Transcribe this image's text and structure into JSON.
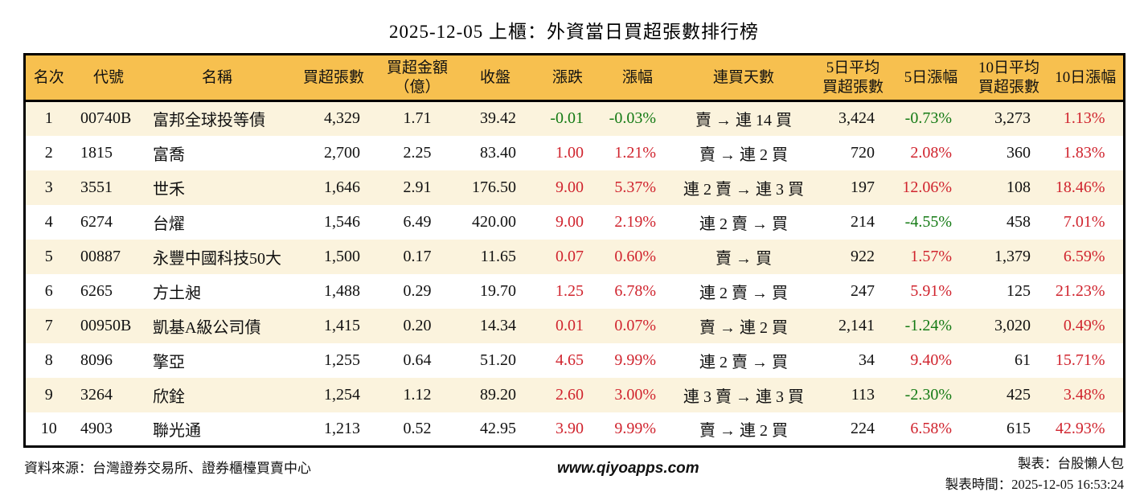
{
  "title": "2025-12-05 上櫃：外資當日買超張數排行榜",
  "table": {
    "headers": [
      "名次",
      "代號",
      "名稱",
      "買超張數",
      "買超金額\n（億）",
      "收盤",
      "漲跌",
      "漲幅",
      "連買天數",
      "5日平均\n買超張數",
      "5日漲幅",
      "10日平均\n買超張數",
      "10日漲幅"
    ],
    "rows": [
      {
        "rank": "1",
        "code": "00740B",
        "name": "富邦全球投等債",
        "lots": "4,329",
        "amount": "1.71",
        "close": "39.42",
        "change": "-0.01",
        "change_dir": "down",
        "pct": "-0.03%",
        "pct_dir": "down",
        "streak": "賣 → 連 14 買",
        "avg5": "3,424",
        "pct5": "-0.73%",
        "pct5_dir": "down",
        "avg10": "3,273",
        "pct10": "1.13%",
        "pct10_dir": "up"
      },
      {
        "rank": "2",
        "code": "1815",
        "name": "富喬",
        "lots": "2,700",
        "amount": "2.25",
        "close": "83.40",
        "change": "1.00",
        "change_dir": "up",
        "pct": "1.21%",
        "pct_dir": "up",
        "streak": "賣 → 連 2 買",
        "avg5": "720",
        "pct5": "2.08%",
        "pct5_dir": "up",
        "avg10": "360",
        "pct10": "1.83%",
        "pct10_dir": "up"
      },
      {
        "rank": "3",
        "code": "3551",
        "name": "世禾",
        "lots": "1,646",
        "amount": "2.91",
        "close": "176.50",
        "change": "9.00",
        "change_dir": "up",
        "pct": "5.37%",
        "pct_dir": "up",
        "streak": "連 2 賣 → 連 3 買",
        "avg5": "197",
        "pct5": "12.06%",
        "pct5_dir": "up",
        "avg10": "108",
        "pct10": "18.46%",
        "pct10_dir": "up"
      },
      {
        "rank": "4",
        "code": "6274",
        "name": "台燿",
        "lots": "1,546",
        "amount": "6.49",
        "close": "420.00",
        "change": "9.00",
        "change_dir": "up",
        "pct": "2.19%",
        "pct_dir": "up",
        "streak": "連 2 賣 → 買",
        "avg5": "214",
        "pct5": "-4.55%",
        "pct5_dir": "down",
        "avg10": "458",
        "pct10": "7.01%",
        "pct10_dir": "up"
      },
      {
        "rank": "5",
        "code": "00887",
        "name": "永豐中國科技50大",
        "lots": "1,500",
        "amount": "0.17",
        "close": "11.65",
        "change": "0.07",
        "change_dir": "up",
        "pct": "0.60%",
        "pct_dir": "up",
        "streak": "賣 → 買",
        "avg5": "922",
        "pct5": "1.57%",
        "pct5_dir": "up",
        "avg10": "1,379",
        "pct10": "6.59%",
        "pct10_dir": "up"
      },
      {
        "rank": "6",
        "code": "6265",
        "name": "方土昶",
        "lots": "1,488",
        "amount": "0.29",
        "close": "19.70",
        "change": "1.25",
        "change_dir": "up",
        "pct": "6.78%",
        "pct_dir": "up",
        "streak": "連 2 賣 → 買",
        "avg5": "247",
        "pct5": "5.91%",
        "pct5_dir": "up",
        "avg10": "125",
        "pct10": "21.23%",
        "pct10_dir": "up"
      },
      {
        "rank": "7",
        "code": "00950B",
        "name": "凱基A級公司債",
        "lots": "1,415",
        "amount": "0.20",
        "close": "14.34",
        "change": "0.01",
        "change_dir": "up",
        "pct": "0.07%",
        "pct_dir": "up",
        "streak": "賣 → 連 2 買",
        "avg5": "2,141",
        "pct5": "-1.24%",
        "pct5_dir": "down",
        "avg10": "3,020",
        "pct10": "0.49%",
        "pct10_dir": "up"
      },
      {
        "rank": "8",
        "code": "8096",
        "name": "擎亞",
        "lots": "1,255",
        "amount": "0.64",
        "close": "51.20",
        "change": "4.65",
        "change_dir": "up",
        "pct": "9.99%",
        "pct_dir": "up",
        "streak": "連 2 賣 → 買",
        "avg5": "34",
        "pct5": "9.40%",
        "pct5_dir": "up",
        "avg10": "61",
        "pct10": "15.71%",
        "pct10_dir": "up"
      },
      {
        "rank": "9",
        "code": "3264",
        "name": "欣銓",
        "lots": "1,254",
        "amount": "1.12",
        "close": "89.20",
        "change": "2.60",
        "change_dir": "up",
        "pct": "3.00%",
        "pct_dir": "up",
        "streak": "連 3 賣 → 連 3 買",
        "avg5": "113",
        "pct5": "-2.30%",
        "pct5_dir": "down",
        "avg10": "425",
        "pct10": "3.48%",
        "pct10_dir": "up"
      },
      {
        "rank": "10",
        "code": "4903",
        "name": "聯光通",
        "lots": "1,213",
        "amount": "0.52",
        "close": "42.95",
        "change": "3.90",
        "change_dir": "up",
        "pct": "9.99%",
        "pct_dir": "up",
        "streak": "賣 → 連 2 買",
        "avg5": "224",
        "pct5": "6.58%",
        "pct5_dir": "up",
        "avg10": "615",
        "pct10": "42.93%",
        "pct10_dir": "up"
      }
    ]
  },
  "footer": {
    "source": "資料來源：台灣證券交易所、證券櫃檯買賣中心",
    "website": "www.qiyoapps.com",
    "author": "製表：台股懶人包",
    "generated": "製表時間：2025-12-05 16:53:24"
  },
  "colors": {
    "up_red": "#d0242e",
    "down_green": "#147a14",
    "header_bg": "#f7c04f",
    "stripe_bg": "#fbf3dd",
    "border": "#000000"
  }
}
